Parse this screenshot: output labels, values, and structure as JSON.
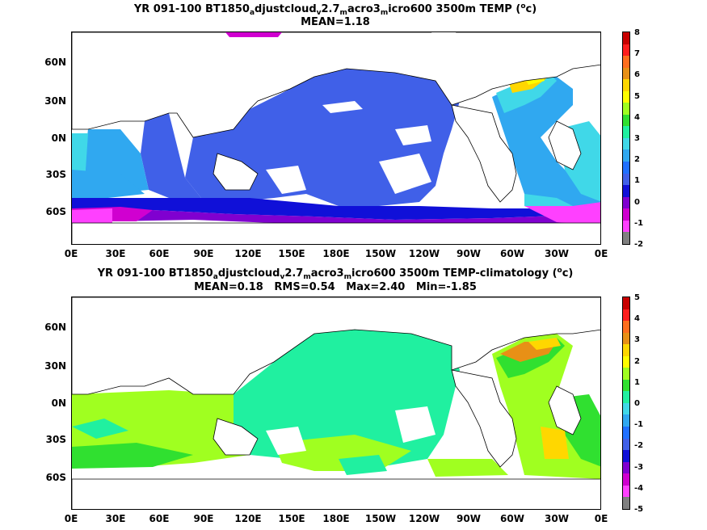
{
  "panel1": {
    "title": {
      "pre": "YR 091-100 BT1850",
      "s1": "a",
      "m1": "djustcloud",
      "s2": "v",
      "m2": "2.7",
      "s3": "m",
      "m3": "acro3",
      "s4": "m",
      "m4": "icro600 3500m TEMP (",
      "sup": "o",
      "post": "c)"
    },
    "stats": "MEAN=1.18",
    "colorbar_labels": [
      "8",
      "7",
      "6",
      "5",
      "4",
      "3",
      "2",
      "1",
      "0",
      "-1",
      "-2"
    ],
    "colorbar_colors": [
      "#c80000",
      "#ff1e1e",
      "#ff6e1e",
      "#e89016",
      "#ffd700",
      "#ffff00",
      "#a0ff20",
      "#30e030",
      "#20f0a0",
      "#40d8e8",
      "#30a8f0",
      "#2070ff",
      "#4060e8",
      "#1010d8",
      "#8000d0",
      "#d000d0",
      "#ff40ff",
      "#808080"
    ]
  },
  "panel2": {
    "title": {
      "pre": "YR 091-100 BT1850",
      "s1": "a",
      "m1": "djustcloud",
      "s2": "v",
      "m2": "2.7",
      "s3": "m",
      "m3": "acro3",
      "s4": "m",
      "m4": "icro600 3500m TEMP-climatology (",
      "sup": "o",
      "post": "c)"
    },
    "stats": "MEAN=0.18   RMS=0.54   Max=2.40   Min=-1.85",
    "colorbar_labels": [
      "5",
      "4",
      "3",
      "2",
      "1",
      "0",
      "-1",
      "-2",
      "-3",
      "-4",
      "-5"
    ],
    "colorbar_colors": [
      "#c80000",
      "#ff1e1e",
      "#ff6e1e",
      "#e89016",
      "#ffd700",
      "#ffff00",
      "#a0ff20",
      "#30e030",
      "#20f0a0",
      "#40d8e8",
      "#30a8f0",
      "#2070ff",
      "#4060e8",
      "#1010d8",
      "#8000d0",
      "#d000d0",
      "#ff40ff",
      "#808080"
    ]
  },
  "lat_labels": [
    "60N",
    "30N",
    "0N",
    "30S",
    "60S"
  ],
  "lon_labels": [
    "0E",
    "30E",
    "60E",
    "90E",
    "120E",
    "150E",
    "180E",
    "150W",
    "120W",
    "90W",
    "60W",
    "30W",
    "0E"
  ]
}
